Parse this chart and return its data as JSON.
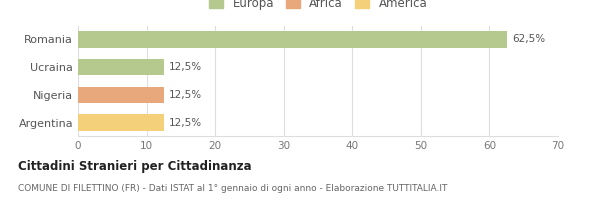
{
  "categories": [
    "Romania",
    "Ucraina",
    "Nigeria",
    "Argentina"
  ],
  "values": [
    62.5,
    12.5,
    12.5,
    12.5
  ],
  "bar_colors": [
    "#b5c98e",
    "#b5c98e",
    "#e8a87c",
    "#f5d07a"
  ],
  "xlim": [
    0,
    70
  ],
  "xticks": [
    0,
    10,
    20,
    30,
    40,
    50,
    60,
    70
  ],
  "bar_labels": [
    "62,5%",
    "12,5%",
    "12,5%",
    "12,5%"
  ],
  "title": "Cittadini Stranieri per Cittadinanza",
  "subtitle": "COMUNE DI FILETTINO (FR) - Dati ISTAT al 1° gennaio di ogni anno - Elaborazione TUTTITALIA.IT",
  "legend_labels": [
    "Europa",
    "Africa",
    "America"
  ],
  "legend_colors": [
    "#b5c98e",
    "#e8a87c",
    "#f5d07a"
  ],
  "background_color": "#ffffff",
  "grid_color": "#dddddd"
}
